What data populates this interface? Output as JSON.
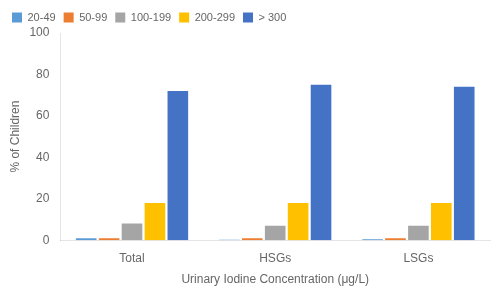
{
  "chart_data": {
    "type": "bar",
    "categories": [
      "Total",
      "HSGs",
      "LSGs"
    ],
    "series": [
      {
        "name": "20-49",
        "color": "#5B9BD5",
        "values": [
          1.0,
          0.2,
          0.5
        ]
      },
      {
        "name": "50-99",
        "color": "#ED7D31",
        "values": [
          1.0,
          1.0,
          1.0
        ]
      },
      {
        "name": "100-199",
        "color": "#A5A5A5",
        "values": [
          8.0,
          7.0,
          7.0
        ]
      },
      {
        "name": "200-299",
        "color": "#FFC000",
        "values": [
          18.0,
          18.0,
          18.0
        ]
      },
      {
        "name": "> 300",
        "color": "#4472C4",
        "values": [
          72.0,
          75.0,
          74.0
        ]
      }
    ],
    "xlabel": "Urinary Iodine Concentration (μg/L)",
    "ylabel": "% of Children",
    "ylim": [
      0,
      100
    ],
    "yticks": [
      0,
      20,
      40,
      60,
      80,
      100
    ],
    "grid": false,
    "legend": "upper left"
  }
}
